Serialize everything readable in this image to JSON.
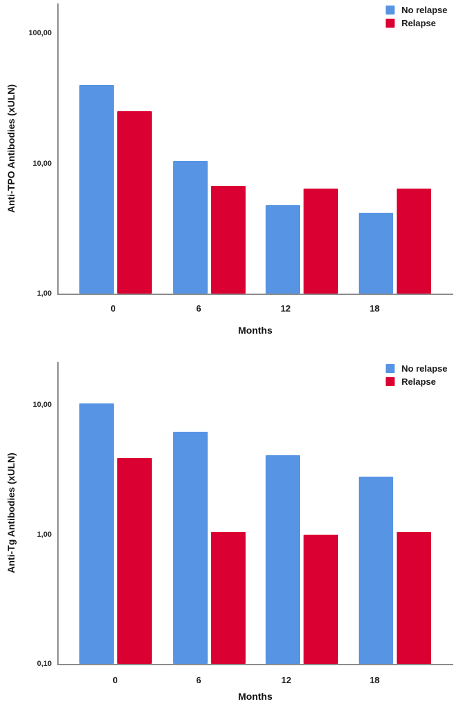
{
  "colors": {
    "no_relapse_blue": "#5794E4",
    "relapse_red": "#DB0032",
    "axis_gray": "#8c8c8c"
  },
  "chart_data": [
    {
      "type": "bar",
      "title": "",
      "ylabel": "Anti-TPO Antibodies (xULN)",
      "xlabel": "Months",
      "yscale": "log",
      "ymin": 1,
      "ymax": 100,
      "grid": false,
      "legend_position": "top-right",
      "yticks": [
        {
          "value": 1,
          "label": "1,00"
        },
        {
          "value": 10,
          "label": "10,00"
        },
        {
          "value": 100,
          "label": "100,00"
        }
      ],
      "categories": [
        "0",
        "6",
        "12",
        "18"
      ],
      "series": [
        {
          "name": "No relapse",
          "color": "#5794E4",
          "values": [
            40,
            10.5,
            4.8,
            4.2
          ]
        },
        {
          "name": "Relapse",
          "color": "#DB0032",
          "values": [
            25,
            6.7,
            6.4,
            6.4
          ]
        }
      ]
    },
    {
      "type": "bar",
      "title": "",
      "ylabel": "Anti-Tg Antibodies (xULN)",
      "xlabel": "Months",
      "yscale": "log",
      "ymin": 0.1,
      "ymax": 10,
      "grid": false,
      "legend_position": "top-right",
      "yticks": [
        {
          "value": 0.1,
          "label": "0,10"
        },
        {
          "value": 1,
          "label": "1,00"
        },
        {
          "value": 10,
          "label": "10,00"
        }
      ],
      "categories": [
        "0",
        "6",
        "12",
        "18"
      ],
      "series": [
        {
          "name": "No relapse",
          "color": "#5794E4",
          "values": [
            10.3,
            6.2,
            4.1,
            2.8
          ]
        },
        {
          "name": "Relapse",
          "color": "#DB0032",
          "values": [
            3.9,
            1.05,
            1.0,
            1.05
          ]
        }
      ]
    }
  ]
}
